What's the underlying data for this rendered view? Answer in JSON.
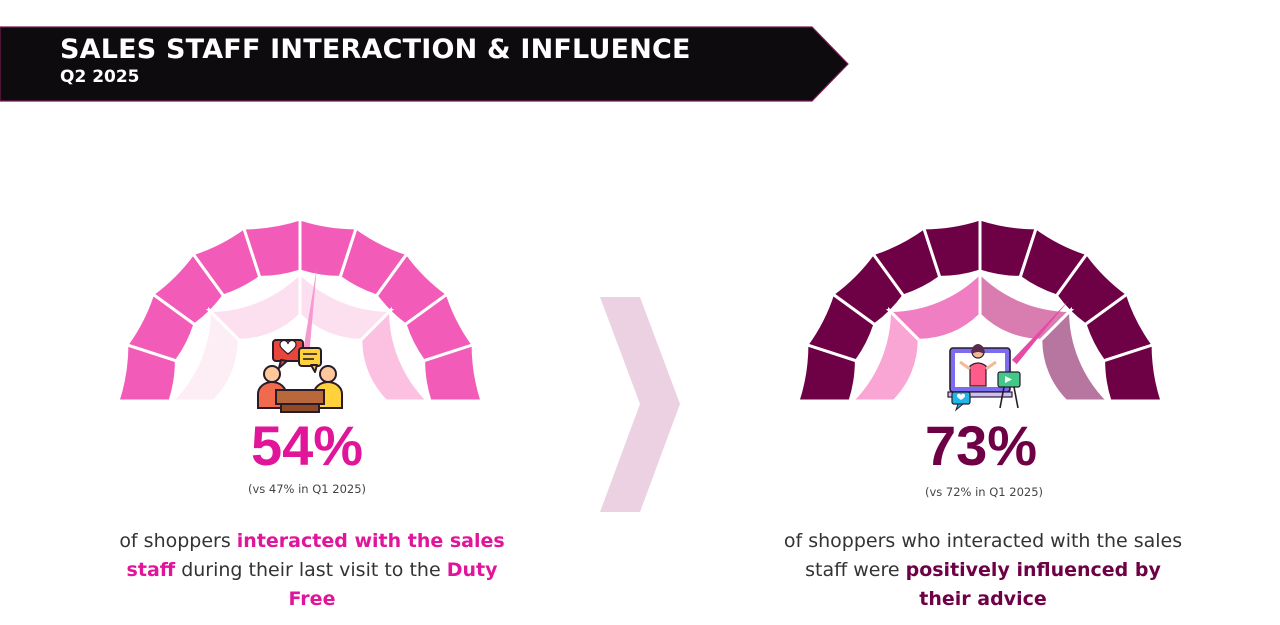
{
  "header": {
    "title": "SALES STAFF INTERACTION & INFLUENCE",
    "subtitle": "Q2 2025"
  },
  "colors": {
    "banner": "#0e0b0e",
    "banner_edge": "#7a1a55",
    "accent_pink": "#e0159a",
    "accent_plum": "#6e0045",
    "chevron": "#ecd1e3"
  },
  "chart_data": [
    {
      "type": "gauge",
      "value": 54,
      "value_label": "54%",
      "comparison": "(vs 47% in Q1 2025)",
      "icon": "staff-interaction-icon",
      "caption": [
        {
          "text": "of shoppers ",
          "bold": false
        },
        {
          "text": "interacted with the sales staff",
          "bold": true
        },
        {
          "text": " during their last visit to the ",
          "bold": false
        },
        {
          "text": "Duty Free",
          "bold": true
        }
      ],
      "theme": {
        "outer": "#f25cb8",
        "bands": [
          "#fdeef6",
          "#fde0ef",
          "#fde0ef",
          "#fcc0e0"
        ],
        "needle": "#f59ad0",
        "value_color": "#e0159a",
        "highlight_color": "#e0159a"
      }
    },
    {
      "type": "gauge",
      "value": 73,
      "value_label": "73%",
      "comparison": "(vs 72% in Q1 2025)",
      "icon": "online-advisor-icon",
      "caption": [
        {
          "text": "of shoppers who interacted with the sales staff were ",
          "bold": false
        },
        {
          "text": "positively influenced by their advice",
          "bold": true
        }
      ],
      "theme": {
        "outer": "#6e0045",
        "bands": [
          "#f9a6d4",
          "#f07ec2",
          "#d97db1",
          "#b6769f"
        ],
        "needle": "#e64aa6",
        "value_color": "#6e0045",
        "highlight_color": "#6e0045"
      }
    }
  ]
}
